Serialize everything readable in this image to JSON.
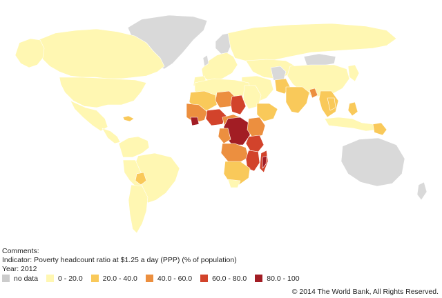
{
  "comments_label": "Comments:",
  "indicator_text": "Indicator: Poverty headcount ratio at $1.25 a day (PPP) (% of population)",
  "year_text": "Year: 2012",
  "legend": [
    {
      "label": "no data",
      "color": "#cccccc"
    },
    {
      "label": "0 - 20.0",
      "color": "#fff7b2"
    },
    {
      "label": "20.0 - 40.0",
      "color": "#f9c95a"
    },
    {
      "label": "40.0 - 60.0",
      "color": "#ec8f3f"
    },
    {
      "label": "60.0 - 80.0",
      "color": "#d2432b"
    },
    {
      "label": "80.0 - 100",
      "color": "#a21d24"
    }
  ],
  "copyright": "© 2014 The World Bank, All Rights Reserved.",
  "colors": {
    "nodata": "#d9d9d9",
    "c0": "#fff7b2",
    "c20": "#f9c95a",
    "c40": "#ec8f3f",
    "c60": "#d2432b",
    "c80": "#a21d24",
    "border": "#ffffff"
  }
}
